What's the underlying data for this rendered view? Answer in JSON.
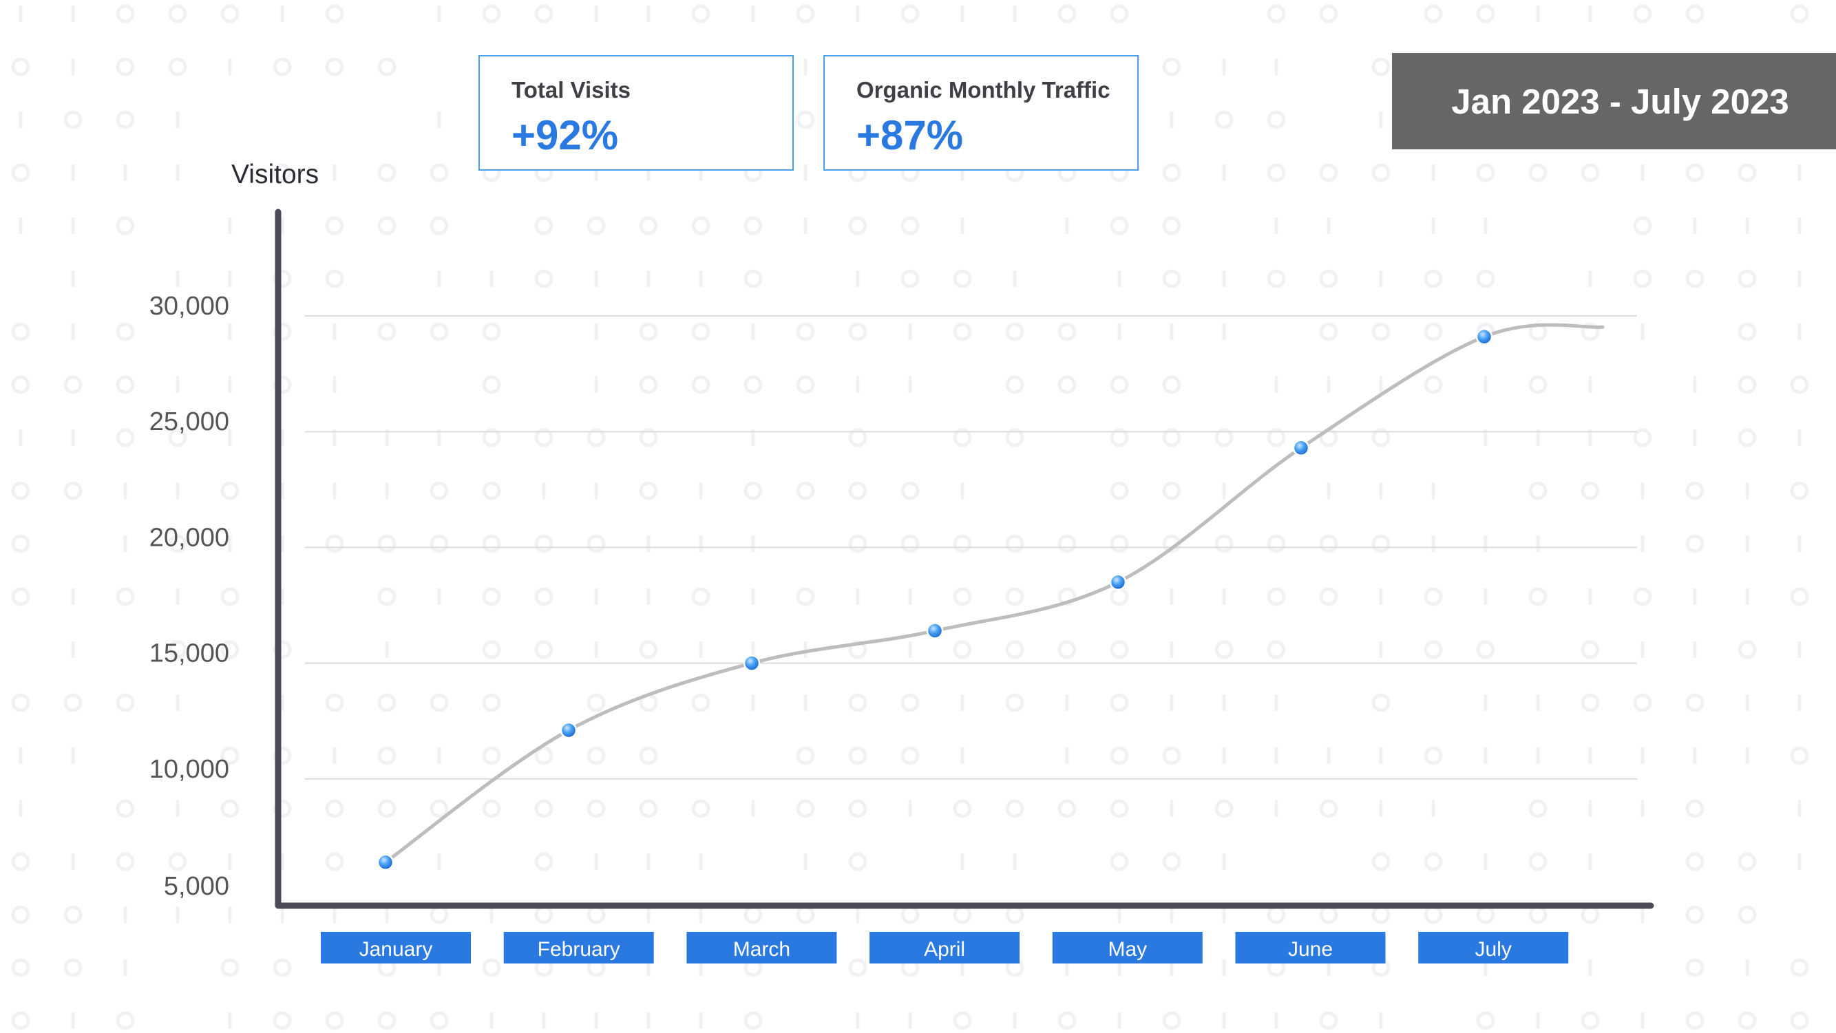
{
  "kpis": [
    {
      "label": "Total Visits",
      "value": "+92%"
    },
    {
      "label": "Organic Monthly Traffic",
      "value": "+87%"
    }
  ],
  "date_range": "Jan 2023 - July 2023",
  "colors": {
    "accent": "#2979e0",
    "card_border": "#4aa0ec",
    "axis": "#4a4a58",
    "line": "#bdbdbd",
    "grid": "#dcdcdc",
    "date_badge": "#666666"
  },
  "chart_data": {
    "type": "line",
    "ylabel": "Visitors",
    "xlabel": "",
    "categories": [
      "January",
      "February",
      "March",
      "April",
      "May",
      "June",
      "July"
    ],
    "y_ticks": [
      "30,000",
      "25,000",
      "20,000",
      "15,000",
      "10,000",
      "5,000"
    ],
    "y_tick_values": [
      30000,
      25000,
      20000,
      15000,
      10000,
      5000
    ],
    "ylim": [
      5000,
      30000
    ],
    "grid": true,
    "smooth": true,
    "series": [
      {
        "values": [
          6400,
          12100,
          15000,
          16400,
          18500,
          24300,
          29100
        ]
      }
    ]
  }
}
